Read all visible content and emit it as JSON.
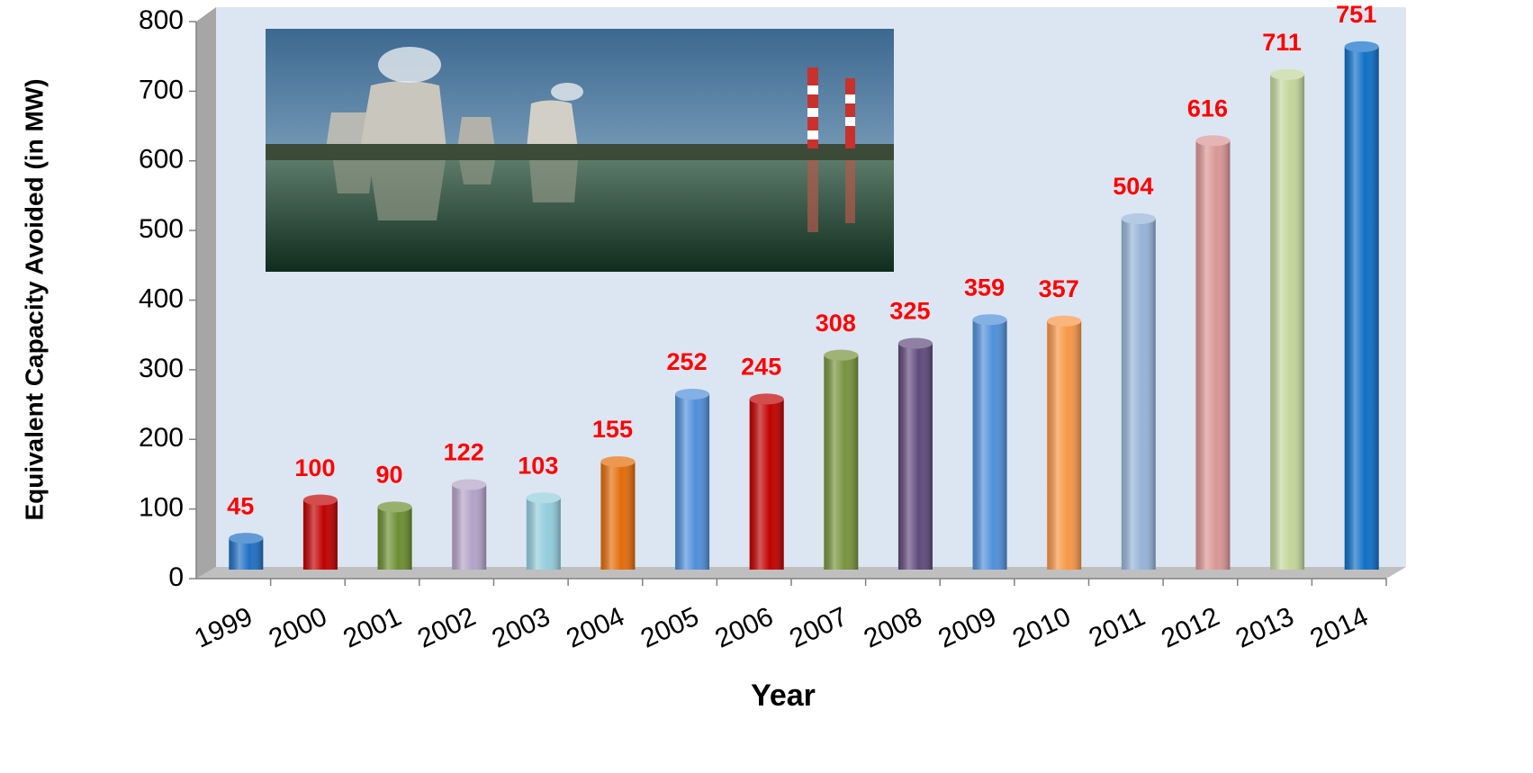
{
  "chart_data": {
    "type": "bar",
    "y_label": "Equivalent Capacity Avoided (in MW)",
    "x_label": "Year",
    "categories": [
      "1999",
      "2000",
      "2001",
      "2002",
      "2003",
      "2004",
      "2005",
      "2006",
      "2007",
      "2008",
      "2009",
      "2010",
      "2011",
      "2012",
      "2013",
      "2014"
    ],
    "values": [
      45,
      100,
      90,
      122,
      103,
      155,
      252,
      245,
      308,
      325,
      359,
      357,
      504,
      616,
      711,
      751
    ],
    "colors": [
      "#1f6fc4",
      "#c00000",
      "#6b8e2f",
      "#b3a2c7",
      "#93cddd",
      "#e36c09",
      "#4f8fd9",
      "#c00000",
      "#77933c",
      "#604a7b",
      "#4f8fd9",
      "#f79646",
      "#95b3d7",
      "#d99694",
      "#c3d69b",
      "#0f6fc6"
    ],
    "ylim": [
      0,
      800
    ],
    "yticks": [
      0,
      100,
      200,
      300,
      400,
      500,
      600,
      700,
      800
    ]
  }
}
